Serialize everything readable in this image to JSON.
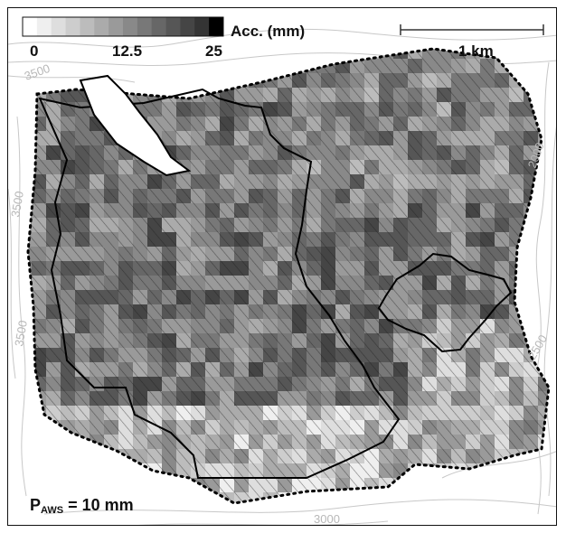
{
  "colorbar": {
    "title": "Acc. (mm)",
    "ticks": [
      "0",
      "12.5",
      "25"
    ],
    "range": [
      0,
      25
    ],
    "colors": [
      "#ffffff",
      "#efefef",
      "#dedede",
      "#cdcdcd",
      "#bcbcbc",
      "#ababab",
      "#9a9a9a",
      "#898989",
      "#787878",
      "#676767",
      "#565656",
      "#454545",
      "#343434",
      "#000000"
    ]
  },
  "scale_bar": {
    "label": "1 km"
  },
  "precip_label": {
    "prefix": "P",
    "subscript": "AWS",
    "suffix": " = 10 mm"
  },
  "contour_labels": [
    "3500",
    "3500",
    "3500",
    "2000",
    "2500",
    "3000"
  ],
  "colors": {
    "frame": "#111111",
    "contour": "#c8c8c8",
    "hatch": "#1a1a1a",
    "outline": "#000000"
  }
}
